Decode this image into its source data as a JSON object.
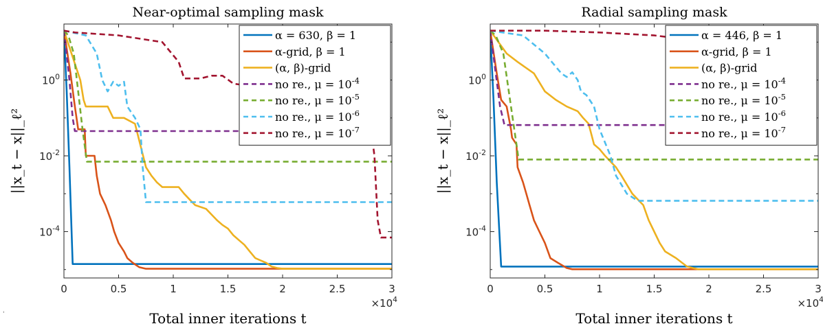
{
  "chart_data": [
    {
      "type": "line",
      "title": "Near-optimal sampling mask",
      "xlabel": "Total inner iterations t",
      "ylabel": "||x_t − x||_ℓ²",
      "x_multiplier": "×10^4",
      "xlim": [
        0,
        30000
      ],
      "ylim": [
        6e-06,
        30
      ],
      "yscale": "log",
      "x_ticks": [
        0,
        5000,
        10000,
        15000,
        20000,
        25000,
        30000
      ],
      "x_tick_labels": [
        "0",
        "0.5",
        "1",
        "1.5",
        "2",
        "2.5",
        "3"
      ],
      "y_ticks": [
        1,
        0.01,
        0.0001
      ],
      "y_tick_labels": [
        "10^0",
        "10^-2",
        "10^-4"
      ],
      "legend_position": "top-right",
      "series": [
        {
          "name": "α = 630, β = 1",
          "color": "#0072BD",
          "dash": "solid",
          "x": [
            0,
            250,
            500,
            800,
            30000
          ],
          "y": [
            20,
            0.5,
            0.005,
            1.4e-05,
            1.4e-05
          ]
        },
        {
          "name": "α-grid, β = 1",
          "color": "#D95319",
          "dash": "solid",
          "x": [
            0,
            600,
            1000,
            1300,
            1900,
            2000,
            2800,
            3000,
            3300,
            3800,
            4300,
            4600,
            5000,
            5500,
            5800,
            6300,
            6900,
            7500,
            30000
          ],
          "y": [
            20,
            1.5,
            0.2,
            0.05,
            0.05,
            0.01,
            0.01,
            0.003,
            0.001,
            0.0005,
            0.0002,
            0.0001,
            5e-05,
            3e-05,
            2e-05,
            1.5e-05,
            1.15e-05,
            1.05e-05,
            1.05e-05
          ]
        },
        {
          "name": "(α, β)-grid",
          "color": "#EDB120",
          "dash": "solid",
          "x": [
            0,
            1500,
            1800,
            2000,
            4000,
            4500,
            5500,
            6500,
            7500,
            8000,
            8500,
            9000,
            10500,
            11000,
            11500,
            12000,
            13000,
            14000,
            14500,
            15000,
            15500,
            16000,
            16500,
            17000,
            17500,
            18500,
            19000,
            19500,
            20000,
            30000
          ],
          "y": [
            20,
            1,
            0.3,
            0.2,
            0.2,
            0.1,
            0.1,
            0.07,
            0.005,
            0.003,
            0.002,
            0.0015,
            0.0015,
            0.001,
            0.0007,
            0.0005,
            0.0004,
            0.0002,
            0.00015,
            0.00012,
            8e-05,
            6e-05,
            4.5e-05,
            3e-05,
            2e-05,
            1.5e-05,
            1.2e-05,
            1.1e-05,
            1.05e-05,
            1.05e-05
          ]
        },
        {
          "name": "no re., μ = 10^-4",
          "color": "#7E2F8E",
          "dash": "dashed",
          "x": [
            0,
            500,
            800,
            1000,
            30000
          ],
          "y": [
            20,
            1,
            0.1,
            0.045,
            0.045
          ]
        },
        {
          "name": "no re., μ = 10^-5",
          "color": "#77AC30",
          "dash": "dashed",
          "x": [
            0,
            400,
            900,
            1300,
            1700,
            2100,
            30000
          ],
          "y": [
            20,
            15,
            5,
            0.5,
            0.05,
            0.007,
            0.007
          ]
        },
        {
          "name": "no re., μ = 10^-6",
          "color": "#4DBEEE",
          "dash": "dashed",
          "x": [
            0,
            2000,
            3000,
            3500,
            4000,
            4500,
            5000,
            5500,
            5800,
            6500,
            7000,
            7200,
            7500,
            30000
          ],
          "y": [
            20,
            15,
            5,
            1,
            0.5,
            0.9,
            0.7,
            0.9,
            0.2,
            0.1,
            0.05,
            0.005,
            0.0006,
            0.0006
          ]
        },
        {
          "name": "no re., μ = 10^-7",
          "color": "#A2142F",
          "dash": "dashed",
          "x": [
            0,
            1000,
            5000,
            9000,
            10500,
            11000,
            12500,
            13500,
            14500,
            15500,
            17000,
            19000,
            21000,
            23000,
            26000,
            27000,
            28000,
            28400,
            28700,
            29000,
            30000
          ],
          "y": [
            20,
            18,
            15,
            10,
            3,
            1.1,
            1.1,
            1.3,
            1.3,
            0.8,
            0.7,
            0.3,
            0.3,
            0.25,
            0.15,
            0.12,
            0.08,
            0.01,
            0.0002,
            7e-05,
            7e-05
          ]
        }
      ]
    },
    {
      "type": "line",
      "title": "Radial sampling mask",
      "xlabel": "Total inner iterations t",
      "ylabel": "||x_t − x||_ℓ²",
      "x_multiplier": "×10^4",
      "xlim": [
        0,
        30000
      ],
      "ylim": [
        6e-06,
        30
      ],
      "yscale": "log",
      "x_ticks": [
        0,
        5000,
        10000,
        15000,
        20000,
        25000,
        30000
      ],
      "x_tick_labels": [
        "0",
        "0.5",
        "1",
        "1.5",
        "2",
        "2.5",
        "3"
      ],
      "y_ticks": [
        1,
        0.01,
        0.0001
      ],
      "y_tick_labels": [
        "10^0",
        "10^-2",
        "10^-4"
      ],
      "legend_position": "top-right",
      "series": [
        {
          "name": "α = 446, β = 1",
          "color": "#0072BD",
          "dash": "solid",
          "x": [
            0,
            300,
            600,
            1000,
            30000
          ],
          "y": [
            20,
            0.3,
            0.002,
            1.2e-05,
            1.2e-05
          ]
        },
        {
          "name": "α-grid, β = 1",
          "color": "#D95319",
          "dash": "solid",
          "x": [
            0,
            600,
            1000,
            1500,
            1900,
            2000,
            2400,
            2500,
            3000,
            3300,
            3600,
            4000,
            4500,
            5000,
            5500,
            6200,
            7000,
            7500,
            30000
          ],
          "y": [
            20,
            1.5,
            0.3,
            0.2,
            0.05,
            0.03,
            0.02,
            0.005,
            0.002,
            0.001,
            0.0005,
            0.0002,
            0.0001,
            5e-05,
            2e-05,
            1.5e-05,
            1.1e-05,
            1.02e-05,
            1.02e-05
          ]
        },
        {
          "name": "(α, β)-grid",
          "color": "#EDB120",
          "dash": "solid",
          "x": [
            0,
            1500,
            2500,
            4000,
            5000,
            6000,
            7000,
            8000,
            8500,
            9000,
            9500,
            10000,
            10500,
            11500,
            12000,
            13000,
            14000,
            14500,
            15000,
            15500,
            16000,
            17000,
            18000,
            19000,
            30000
          ],
          "y": [
            20,
            5,
            3,
            1.5,
            0.5,
            0.3,
            0.2,
            0.15,
            0.1,
            0.07,
            0.02,
            0.015,
            0.01,
            0.005,
            0.003,
            0.001,
            0.0005,
            0.0002,
            0.0001,
            5e-05,
            3e-05,
            2e-05,
            1.2e-05,
            1.02e-05,
            1.02e-05
          ]
        },
        {
          "name": "no re., μ = 10^-4",
          "color": "#7E2F8E",
          "dash": "dashed",
          "x": [
            0,
            500,
            900,
            1300,
            30000
          ],
          "y": [
            20,
            1.5,
            0.2,
            0.065,
            0.065
          ]
        },
        {
          "name": "no re., μ = 10^-5",
          "color": "#77AC30",
          "dash": "dashed",
          "x": [
            0,
            500,
            1200,
            1700,
            2200,
            2600,
            30000
          ],
          "y": [
            20,
            15,
            5,
            0.5,
            0.05,
            0.008,
            0.008
          ]
        },
        {
          "name": "no re., μ = 10^-6",
          "color": "#4DBEEE",
          "dash": "dashed",
          "x": [
            0,
            3000,
            5000,
            6500,
            7000,
            7500,
            8000,
            8300,
            8800,
            9500,
            10000,
            11000,
            11500,
            12500,
            13500,
            30000
          ],
          "y": [
            20,
            15,
            5,
            1.5,
            1.2,
            1.6,
            1,
            0.5,
            0.4,
            0.2,
            0.05,
            0.01,
            0.003,
            0.001,
            0.00065,
            0.00065
          ]
        },
        {
          "name": "no re., μ = 10^-7",
          "color": "#A2142F",
          "dash": "dashed",
          "x": [
            0,
            5000,
            10000,
            15000,
            20000,
            21500,
            22500,
            30000
          ],
          "y": [
            20,
            20,
            18,
            15,
            10,
            5,
            1.1,
            1.1
          ]
        }
      ]
    }
  ],
  "corner_mark": "'"
}
